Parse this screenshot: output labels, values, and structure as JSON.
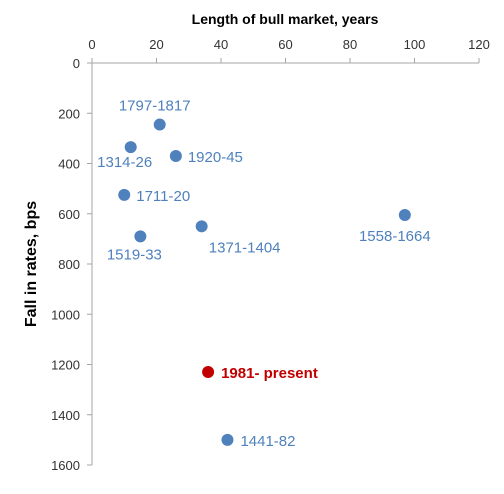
{
  "chart_data": {
    "type": "scatter",
    "title": "",
    "xlabel": "Length of bull  market, years",
    "ylabel": "Fall in rates, bps",
    "xlim": [
      0,
      120
    ],
    "ylim": [
      0,
      1600
    ],
    "x_axis_position": "top",
    "y_axis_inverted": true,
    "grid": false,
    "x_ticks": [
      0,
      20,
      40,
      60,
      80,
      100,
      120
    ],
    "y_ticks": [
      0,
      200,
      400,
      600,
      800,
      1000,
      1200,
      1400,
      1600
    ],
    "points": [
      {
        "label": "1797-1817",
        "x": 21,
        "y": 245,
        "color": "#4f81bd"
      },
      {
        "label": "1314-26",
        "x": 12,
        "y": 335,
        "color": "#4f81bd"
      },
      {
        "label": "1920-45",
        "x": 26,
        "y": 370,
        "color": "#4f81bd"
      },
      {
        "label": "1711-20",
        "x": 10,
        "y": 525,
        "color": "#4f81bd"
      },
      {
        "label": "1558-1664",
        "x": 97,
        "y": 605,
        "color": "#4f81bd"
      },
      {
        "label": "1371-1404",
        "x": 34,
        "y": 650,
        "color": "#4f81bd"
      },
      {
        "label": "1519-33",
        "x": 15,
        "y": 690,
        "color": "#4f81bd"
      },
      {
        "label": "1981- present",
        "x": 36,
        "y": 1230,
        "color": "#c00000",
        "emphasis": true
      },
      {
        "label": "1441-82",
        "x": 42,
        "y": 1500,
        "color": "#4f81bd"
      }
    ]
  }
}
